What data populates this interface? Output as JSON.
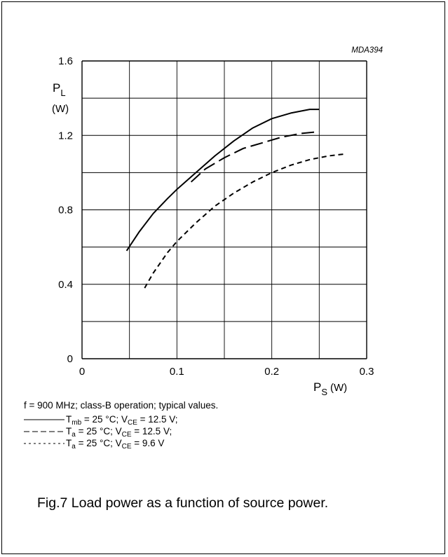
{
  "figure_code": "MDA394",
  "conditions_text": "f = 900 MHz; class-B operation; typical values.",
  "legend": [
    {
      "style": "solid",
      "label_html": "T<sub>mb</sub> = 25 °C; V<sub>CE</sub> = 12.5 V;"
    },
    {
      "style": "long-dash",
      "label_html": "T<sub>a</sub> = 25 °C; V<sub>CE</sub> = 12.5 V;"
    },
    {
      "style": "short-dash",
      "label_html": "T<sub>a</sub> = 25 °C; V<sub>CE</sub> = 9.6 V"
    }
  ],
  "caption": "Fig.7  Load power as a function of source power.",
  "chart_data": {
    "type": "line",
    "title": "",
    "xlabel_main": "P",
    "xlabel_sub": "S",
    "xlabel_unit": "(W)",
    "ylabel_main": "P",
    "ylabel_sub": "L",
    "ylabel_unit": "(W)",
    "xlim": [
      0,
      0.3
    ],
    "ylim": [
      0,
      1.6
    ],
    "x_ticks": [
      0,
      0.1,
      0.2,
      0.3
    ],
    "x_tick_labels": [
      "0",
      "0.1",
      "0.2",
      "0.3"
    ],
    "y_ticks": [
      0,
      0.4,
      0.8,
      1.2,
      1.6
    ],
    "y_tick_labels": [
      "0",
      "0.4",
      "0.8",
      "1.2",
      "1.6"
    ],
    "x_grid_step": 0.05,
    "y_grid_step": 0.2,
    "grid": true,
    "series": [
      {
        "line_style": "solid",
        "x": [
          0.047,
          0.06,
          0.075,
          0.09,
          0.1,
          0.12,
          0.14,
          0.16,
          0.18,
          0.2,
          0.22,
          0.24,
          0.25
        ],
        "y": [
          0.58,
          0.68,
          0.78,
          0.86,
          0.91,
          1.0,
          1.09,
          1.17,
          1.24,
          1.29,
          1.32,
          1.34,
          1.34
        ]
      },
      {
        "line_style": "long-dash",
        "x": [
          0.115,
          0.13,
          0.15,
          0.17,
          0.19,
          0.21,
          0.23,
          0.25
        ],
        "y": [
          0.95,
          1.02,
          1.08,
          1.13,
          1.16,
          1.19,
          1.21,
          1.22
        ]
      },
      {
        "line_style": "short-dash",
        "x": [
          0.066,
          0.075,
          0.09,
          0.1,
          0.12,
          0.14,
          0.16,
          0.18,
          0.2,
          0.22,
          0.24,
          0.26,
          0.277
        ],
        "y": [
          0.38,
          0.46,
          0.57,
          0.63,
          0.73,
          0.82,
          0.89,
          0.95,
          1.0,
          1.04,
          1.07,
          1.09,
          1.1
        ]
      }
    ]
  }
}
